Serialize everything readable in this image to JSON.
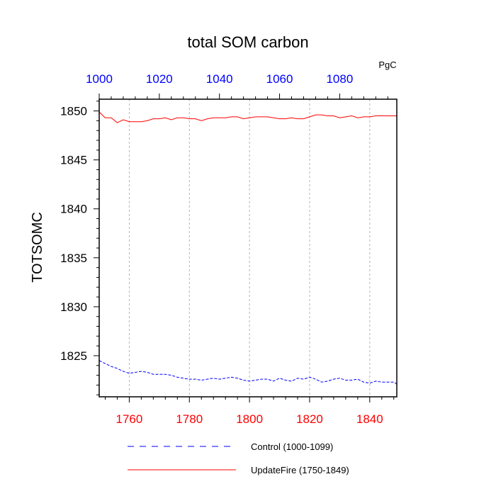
{
  "chart_data": {
    "type": "line",
    "title": "total SOM carbon",
    "units": "PgC",
    "ylabel": "TOTSOMC",
    "ylim": [
      1820.8,
      1851.2
    ],
    "yticks": [
      1825,
      1830,
      1835,
      1840,
      1845,
      1850
    ],
    "bottom_axis": {
      "lim": [
        1750,
        1849
      ],
      "ticks": [
        1760,
        1780,
        1800,
        1820,
        1840
      ],
      "color": "#ff0000"
    },
    "top_axis": {
      "lim": [
        1000,
        1099
      ],
      "ticks": [
        1000,
        1020,
        1040,
        1060,
        1080
      ],
      "color": "#0000ff"
    },
    "vertical_grid": "dashed grey at bottom-axis major ticks",
    "legend_position": "bottom",
    "series": [
      {
        "name": "Control (1000-1099)",
        "axis": "top",
        "color": "#0000ff",
        "dash": "dashed",
        "x": [
          1000,
          1002,
          1004,
          1006,
          1008,
          1010,
          1012,
          1014,
          1016,
          1018,
          1020,
          1022,
          1024,
          1026,
          1028,
          1030,
          1032,
          1034,
          1036,
          1038,
          1040,
          1042,
          1044,
          1046,
          1048,
          1050,
          1052,
          1054,
          1056,
          1058,
          1060,
          1062,
          1064,
          1066,
          1068,
          1070,
          1072,
          1074,
          1076,
          1078,
          1080,
          1082,
          1084,
          1086,
          1088,
          1090,
          1092,
          1094,
          1096,
          1098,
          1099
        ],
        "y": [
          1824.5,
          1824.2,
          1823.9,
          1823.7,
          1823.4,
          1823.2,
          1823.3,
          1823.4,
          1823.3,
          1823.1,
          1823.1,
          1823.1,
          1823.0,
          1822.8,
          1822.7,
          1822.6,
          1822.6,
          1822.5,
          1822.6,
          1822.7,
          1822.6,
          1822.7,
          1822.8,
          1822.7,
          1822.5,
          1822.4,
          1822.5,
          1822.6,
          1822.6,
          1822.4,
          1822.7,
          1822.5,
          1822.4,
          1822.7,
          1822.6,
          1822.8,
          1822.6,
          1822.3,
          1822.4,
          1822.6,
          1822.7,
          1822.5,
          1822.5,
          1822.6,
          1822.3,
          1822.2,
          1822.4,
          1822.3,
          1822.3,
          1822.3,
          1822.1
        ]
      },
      {
        "name": "UpdateFire (1750-1849)",
        "axis": "bottom",
        "color": "#ff0000",
        "dash": "solid",
        "x": [
          1750,
          1751,
          1752,
          1754,
          1756,
          1758,
          1760,
          1762,
          1764,
          1766,
          1768,
          1770,
          1772,
          1774,
          1776,
          1778,
          1780,
          1782,
          1784,
          1786,
          1788,
          1790,
          1792,
          1794,
          1796,
          1798,
          1800,
          1802,
          1804,
          1806,
          1808,
          1810,
          1812,
          1814,
          1816,
          1818,
          1820,
          1822,
          1824,
          1826,
          1828,
          1830,
          1832,
          1834,
          1836,
          1838,
          1840,
          1842,
          1844,
          1846,
          1849
        ],
        "y": [
          1849.9,
          1849.6,
          1849.3,
          1849.3,
          1848.8,
          1849.1,
          1848.9,
          1848.9,
          1848.9,
          1849.0,
          1849.2,
          1849.2,
          1849.3,
          1849.1,
          1849.3,
          1849.3,
          1849.2,
          1849.2,
          1849.0,
          1849.2,
          1849.3,
          1849.3,
          1849.3,
          1849.4,
          1849.4,
          1849.2,
          1849.3,
          1849.4,
          1849.4,
          1849.4,
          1849.3,
          1849.2,
          1849.2,
          1849.3,
          1849.2,
          1849.2,
          1849.4,
          1849.6,
          1849.6,
          1849.5,
          1849.5,
          1849.3,
          1849.4,
          1849.5,
          1849.3,
          1849.4,
          1849.4,
          1849.5,
          1849.5,
          1849.5,
          1849.5
        ]
      }
    ],
    "legend": [
      {
        "label": "Control (1000-1099)",
        "color": "#0000ff",
        "dash": "dashed"
      },
      {
        "label": "UpdateFire (1750-1849)",
        "color": "#ff0000",
        "dash": "solid"
      }
    ]
  }
}
